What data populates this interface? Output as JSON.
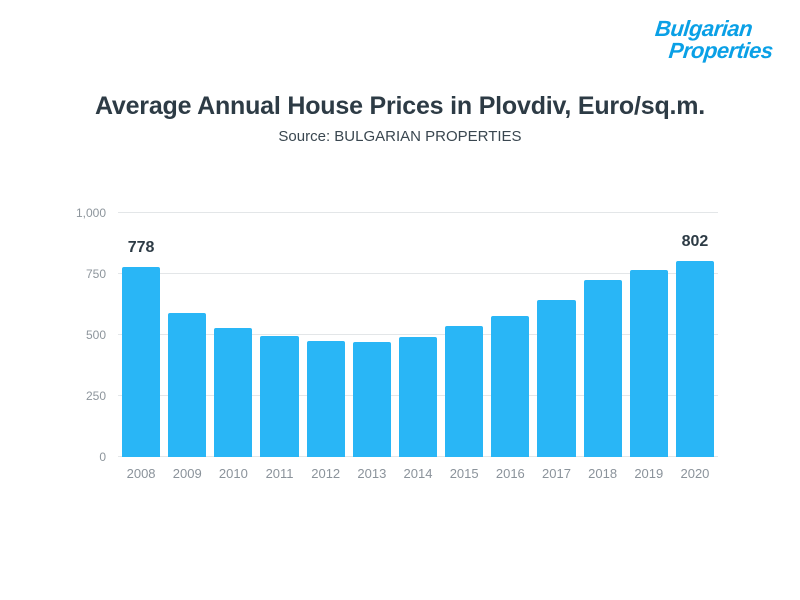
{
  "logo": {
    "line1": "Bulgarian",
    "line2": "Properties",
    "color": "#0aa0e6"
  },
  "header": {
    "title": "Average Annual House Prices in Plovdiv, Euro/sq.m.",
    "subtitle": "Source: BULGARIAN PROPERTIES"
  },
  "chart_data": {
    "type": "bar",
    "title": "Average Annual House Prices in Plovdiv, Euro/sq.m.",
    "categories": [
      "2008",
      "2009",
      "2010",
      "2011",
      "2012",
      "2013",
      "2014",
      "2015",
      "2016",
      "2017",
      "2018",
      "2019",
      "2020"
    ],
    "values": [
      778,
      589,
      530,
      497,
      476,
      471,
      493,
      536,
      576,
      642,
      724,
      768,
      802
    ],
    "bar_color": "#29b6f6",
    "ylim": [
      0,
      1000
    ],
    "yticks": [
      0,
      250,
      500,
      750,
      1000
    ],
    "ytick_labels": [
      "0",
      "250",
      "500",
      "750",
      "1,000"
    ],
    "annotations": [
      {
        "category": "2008",
        "text": "778"
      },
      {
        "category": "2020",
        "text": "802"
      }
    ],
    "grid": true,
    "legend": "none",
    "xlabel": "",
    "ylabel": ""
  }
}
